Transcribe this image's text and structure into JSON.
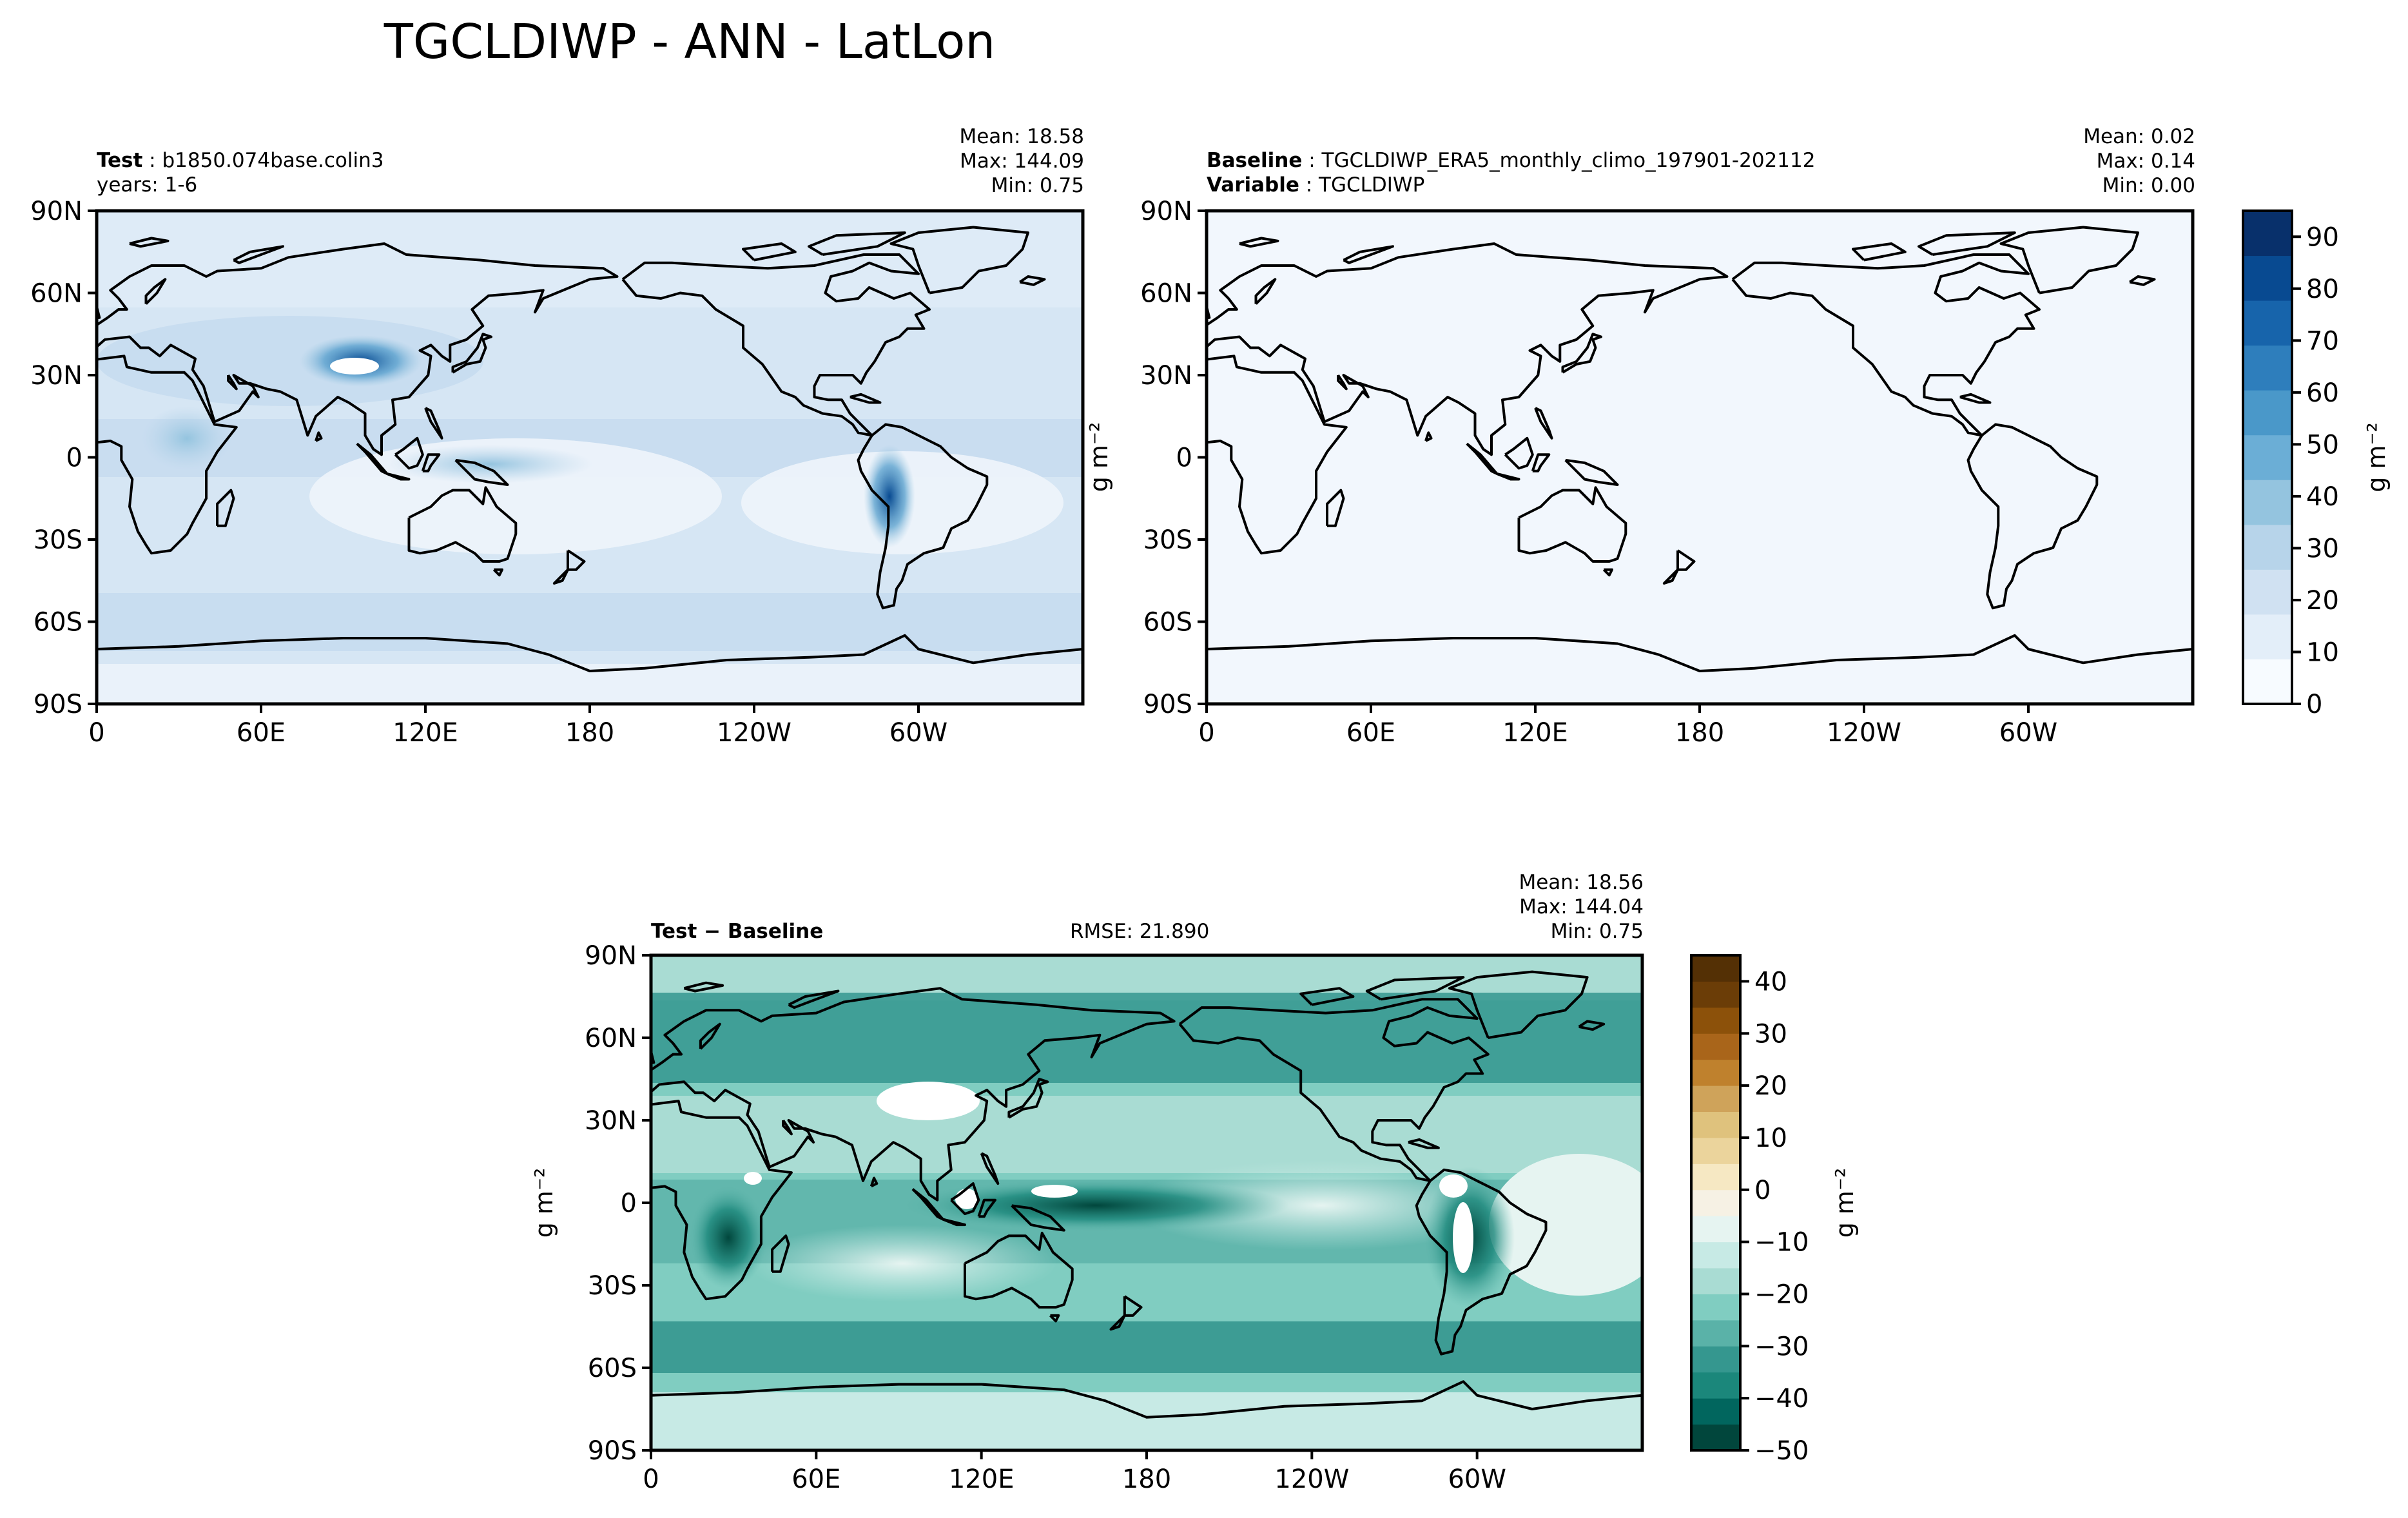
{
  "title": "TGCLDIWP - ANN - LatLon",
  "panels": [
    {
      "id": "test",
      "left_label_1": "Test",
      "left_value_1": "b1850.074base.colin3",
      "left_line_2": "years: 1-6",
      "stats": {
        "mean": "Mean: 18.58",
        "max": "Max: 144.09",
        "min": "Min:  0.75"
      }
    },
    {
      "id": "baseline",
      "left_label_1": "Baseline",
      "left_value_1": "TGCLDIWP_ERA5_monthly_climo_197901-202112",
      "left_label_2": "Variable",
      "left_value_2": "TGCLDIWP",
      "stats": {
        "mean": "Mean:  0.02",
        "max": "Max:  0.14",
        "min": "Min:  0.00"
      }
    },
    {
      "id": "diff",
      "left_label_1": "Test − Baseline",
      "center_text": "RMSE: 21.890",
      "stats": {
        "mean": "Mean: 18.56",
        "max": "Max: 144.04",
        "min": "Min:  0.75"
      }
    }
  ],
  "chart_data": [
    {
      "type": "heatmap",
      "title": "Test",
      "x_ticks": [
        "0",
        "60E",
        "120E",
        "180",
        "120W",
        "60W"
      ],
      "y_ticks": [
        "90N",
        "60N",
        "30N",
        "0",
        "30S",
        "60S",
        "90S"
      ],
      "xlim": [
        0,
        360
      ],
      "ylim": [
        -90,
        90
      ],
      "colorbar": {
        "shared_with": "baseline"
      }
    },
    {
      "type": "heatmap",
      "title": "Baseline",
      "x_ticks": [
        "0",
        "60E",
        "120E",
        "180",
        "120W",
        "60W"
      ],
      "y_ticks": [
        "90N",
        "60N",
        "30N",
        "0",
        "30S",
        "60S",
        "90S"
      ],
      "xlim": [
        0,
        360
      ],
      "ylim": [
        -90,
        90
      ],
      "colorbar": {
        "label": "g m⁻²",
        "ticks": [
          0,
          10,
          20,
          30,
          40,
          50,
          60,
          70,
          80,
          90
        ],
        "range": [
          0,
          95
        ],
        "colormap": "Blues",
        "colors": [
          "#f7fbff",
          "#e3eef9",
          "#d0e1f2",
          "#b7d4ea",
          "#94c4df",
          "#6baed6",
          "#4a98c9",
          "#2e7ebc",
          "#1764ab",
          "#084a91",
          "#08306b"
        ]
      }
    },
    {
      "type": "heatmap",
      "title": "Test − Baseline",
      "x_ticks": [
        "0",
        "60E",
        "120E",
        "180",
        "120W",
        "60W"
      ],
      "y_ticks": [
        "90N",
        "60N",
        "30N",
        "0",
        "30S",
        "60S",
        "90S"
      ],
      "xlim": [
        0,
        360
      ],
      "ylim": [
        -90,
        90
      ],
      "rmse": 21.89,
      "colorbar": {
        "label": "g m⁻²",
        "ticks": [
          40,
          30,
          20,
          10,
          0,
          -10,
          -20,
          -30,
          -40,
          -50
        ],
        "range": [
          -50,
          45
        ],
        "colormap": "BrBG",
        "colors": [
          "#01463c",
          "#01665e",
          "#1b877b",
          "#35978f",
          "#5ab2a8",
          "#80cdc1",
          "#a9dcd3",
          "#c7eae5",
          "#e6f4f1",
          "#f6f1e4",
          "#f6e8c3",
          "#ebd49c",
          "#dfc27d",
          "#cfa35a",
          "#bf812d",
          "#a9651a",
          "#8c510a",
          "#6b3d07",
          "#543005"
        ]
      }
    }
  ],
  "axis_label_shown": "g m⁻²"
}
